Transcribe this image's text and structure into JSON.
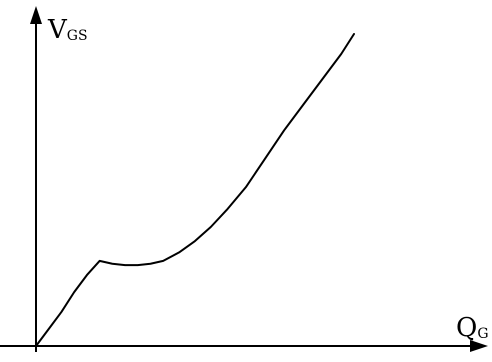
{
  "chart_data": {
    "type": "line",
    "title": "",
    "ylabel_main": "V",
    "ylabel_sub": "GS",
    "xlabel_main": "Q",
    "xlabel_sub": "G",
    "grid": false,
    "legend": "none",
    "color": "#000000",
    "series": [
      {
        "x": [
          0,
          4,
          8,
          12,
          16,
          20,
          24,
          28,
          32,
          36,
          40,
          45,
          50,
          55,
          60,
          66,
          72,
          78,
          84,
          90,
          96,
          100
        ],
        "y": [
          0,
          6,
          12,
          19,
          25,
          30,
          29,
          28.5,
          28.5,
          29,
          30,
          33,
          37,
          42,
          48,
          56,
          66,
          76,
          85,
          94,
          103,
          110
        ]
      }
    ],
    "xlim": [
      0,
      100
    ],
    "ylim": [
      0,
      110
    ]
  }
}
